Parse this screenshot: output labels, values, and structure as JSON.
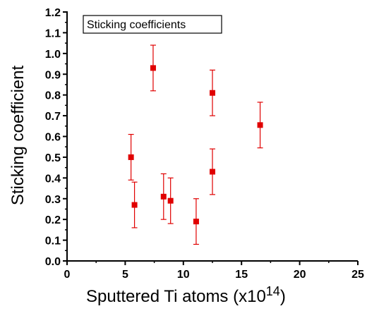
{
  "chart_data": {
    "type": "scatter",
    "title": "",
    "xlabel": "Sputtered Ti atoms (x10",
    "xlabel_superscript": "14",
    "xlabel_suffix": ")",
    "ylabel": "Sticking coefficient",
    "xlim": [
      0,
      25
    ],
    "ylim": [
      0.0,
      1.2
    ],
    "x_ticks": [
      "0",
      "5",
      "10",
      "15",
      "20",
      "25"
    ],
    "y_ticks": [
      "0.0",
      "0.1",
      "0.2",
      "0.3",
      "0.4",
      "0.5",
      "0.6",
      "0.7",
      "0.8",
      "0.9",
      "1.0",
      "1.1",
      "1.2"
    ],
    "grid": false,
    "legend_position": "top-left",
    "series": [
      {
        "name": "Sticking coefficients",
        "color": "#e00000",
        "marker": "square",
        "points": [
          {
            "x": 5.5,
            "y": 0.5,
            "err": 0.11
          },
          {
            "x": 5.8,
            "y": 0.27,
            "err": 0.11
          },
          {
            "x": 7.4,
            "y": 0.93,
            "err": 0.11
          },
          {
            "x": 8.3,
            "y": 0.31,
            "err": 0.11
          },
          {
            "x": 8.9,
            "y": 0.29,
            "err": 0.11
          },
          {
            "x": 11.1,
            "y": 0.19,
            "err": 0.11
          },
          {
            "x": 12.5,
            "y": 0.81,
            "err": 0.11
          },
          {
            "x": 12.5,
            "y": 0.43,
            "err": 0.11
          },
          {
            "x": 16.6,
            "y": 0.655,
            "err": 0.11
          }
        ]
      }
    ]
  }
}
